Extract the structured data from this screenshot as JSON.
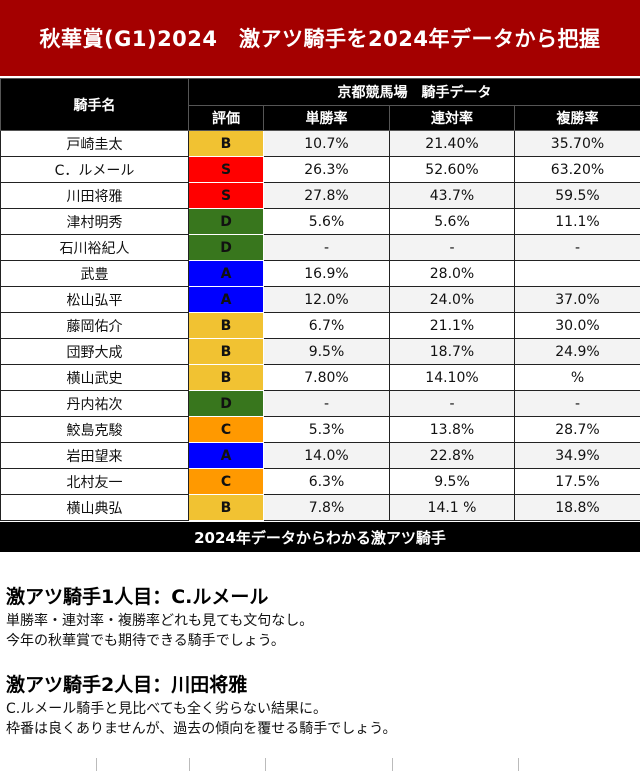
{
  "banner": {
    "title": "秋華賞(G1)2024　激アツ騎手を2024年データから把握"
  },
  "table": {
    "col_jockey": "騎手名",
    "group_title": "京都競馬場　騎手データ",
    "col_rank": "評価",
    "col_win": "単勝率",
    "col_place2": "連対率",
    "col_place3": "複勝率",
    "rows": [
      {
        "name": "戸崎圭太",
        "rank": "B",
        "win": "10.7%",
        "p2": "21.40%",
        "p3": "35.70%"
      },
      {
        "name": "C．ルメール",
        "rank": "S",
        "win": "26.3%",
        "p2": "52.60%",
        "p3": "63.20%"
      },
      {
        "name": "川田将雅",
        "rank": "S",
        "win": "27.8%",
        "p2": "43.7%",
        "p3": "59.5%"
      },
      {
        "name": "津村明秀",
        "rank": "D",
        "win": "5.6%",
        "p2": "5.6%",
        "p3": "11.1%"
      },
      {
        "name": "石川裕紀人",
        "rank": "D",
        "win": "-",
        "p2": "-",
        "p3": "-"
      },
      {
        "name": "武豊",
        "rank": "A",
        "win": "16.9%",
        "p2": "28.0%",
        "p3": ""
      },
      {
        "name": "松山弘平",
        "rank": "A",
        "win": "12.0%",
        "p2": "24.0%",
        "p3": "37.0%"
      },
      {
        "name": "藤岡佑介",
        "rank": "B",
        "win": "6.7%",
        "p2": "21.1%",
        "p3": "30.0%"
      },
      {
        "name": "団野大成",
        "rank": "B",
        "win": "9.5%",
        "p2": "18.7%",
        "p3": "24.9%"
      },
      {
        "name": "横山武史",
        "rank": "B",
        "win": "7.80%",
        "p2": "14.10%",
        "p3": "%"
      },
      {
        "name": "丹内祐次",
        "rank": "D",
        "win": "-",
        "p2": "-",
        "p3": "-"
      },
      {
        "name": "鮫島克駿",
        "rank": "C",
        "win": "5.3%",
        "p2": "13.8%",
        "p3": "28.7%"
      },
      {
        "name": "岩田望来",
        "rank": "A",
        "win": "14.0%",
        "p2": "22.8%",
        "p3": "34.9%"
      },
      {
        "name": "北村友一",
        "rank": "C",
        "win": "6.3%",
        "p2": "9.5%",
        "p3": "17.5%"
      },
      {
        "name": "横山典弘",
        "rank": "B",
        "win": "7.8%",
        "p2": "14.1 %",
        "p3": "18.8%"
      }
    ]
  },
  "rank_colors": {
    "S": "#ff0000",
    "A": "#0000ff",
    "B": "#f1c232",
    "C": "#ff9900",
    "D": "#38761d"
  },
  "summary": {
    "title": "2024年データからわかる激アツ騎手"
  },
  "picks": [
    {
      "heading": "激アツ騎手1人目：C.ルメール",
      "line1": "単勝率・連対率・複勝率どれも見ても文句なし。",
      "line2": "今年の秋華賞でも期待できる騎手でしょう。"
    },
    {
      "heading": "激アツ騎手2人目：川田将雅",
      "line1": "C.ルメール騎手と見比べても全く劣らない結果に。",
      "line2": "枠番は良くありませんが、過去の傾向を覆せる騎手でしょう。"
    }
  ]
}
